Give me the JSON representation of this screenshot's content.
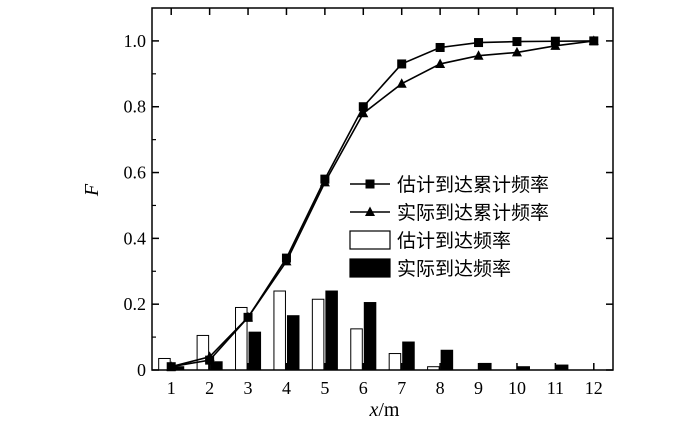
{
  "chart_data": {
    "type": "bar",
    "xlabel_var": "x",
    "xlabel_unit": "/m",
    "ylabel": "F",
    "x": [
      1,
      2,
      3,
      4,
      5,
      6,
      7,
      8,
      9,
      10,
      11,
      12
    ],
    "ylim": [
      0,
      1.1
    ],
    "yticks": [
      "0",
      "0.2",
      "0.4",
      "0.6",
      "0.8",
      "1.0"
    ],
    "ytick_values": [
      0,
      0.2,
      0.4,
      0.6,
      0.8,
      1.0
    ],
    "legend_position": "right",
    "series": [
      {
        "name": "估计到达累计频率",
        "type": "line",
        "marker": "square",
        "values": [
          0.01,
          0.03,
          0.16,
          0.34,
          0.58,
          0.8,
          0.93,
          0.98,
          0.995,
          0.998,
          0.999,
          1.0
        ]
      },
      {
        "name": "实际到达累计频率",
        "type": "line",
        "marker": "triangle",
        "values": [
          0.01,
          0.04,
          0.16,
          0.33,
          0.57,
          0.78,
          0.87,
          0.93,
          0.955,
          0.965,
          0.985,
          1.0
        ]
      },
      {
        "name": "估计到达频率",
        "type": "bar",
        "fill": "#ffffff",
        "values": [
          0.035,
          0.105,
          0.19,
          0.24,
          0.215,
          0.125,
          0.05,
          0.01,
          0.0,
          0.0,
          0.0,
          0.0
        ]
      },
      {
        "name": "实际到达频率",
        "type": "bar",
        "fill": "#000000",
        "values": [
          0.01,
          0.025,
          0.115,
          0.165,
          0.24,
          0.205,
          0.085,
          0.06,
          0.02,
          0.01,
          0.015,
          0.0
        ]
      }
    ]
  }
}
